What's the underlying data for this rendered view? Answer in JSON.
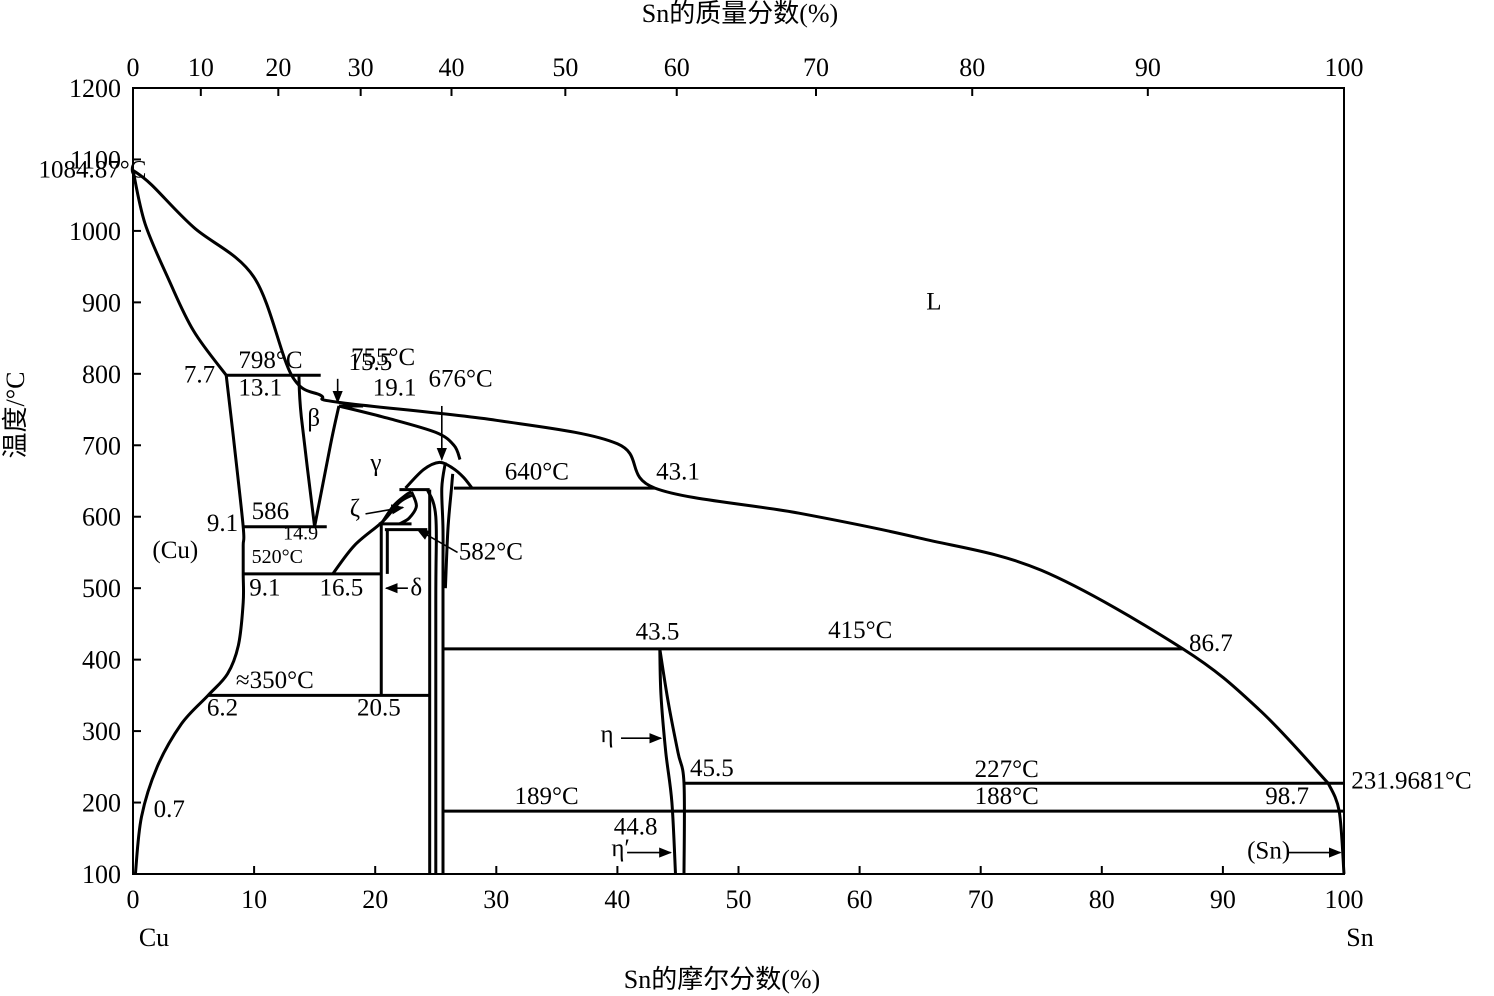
{
  "chart_data": {
    "type": "line",
    "title": "",
    "xlabel": "Sn的摩尔分数(%)",
    "x2label": "Sn的质量分数(%)",
    "ylabel": "温度/°C",
    "xlim": [
      0,
      100
    ],
    "ylim": [
      100,
      1200
    ],
    "grid": false,
    "x_ticks": [
      "0",
      "10",
      "20",
      "30",
      "40",
      "50",
      "60",
      "70",
      "80",
      "90",
      "100"
    ],
    "y_ticks": [
      "100",
      "200",
      "300",
      "400",
      "500",
      "600",
      "700",
      "800",
      "900",
      "1000",
      "1100",
      "1200"
    ],
    "x2_ticks": [
      "0",
      "10",
      "20",
      "30",
      "40",
      "50",
      "60",
      "70",
      "80",
      "90",
      "100"
    ],
    "x2_tick_positions_mol": [
      0,
      5.6,
      12.0,
      18.8,
      26.3,
      35.7,
      44.9,
      56.4,
      69.3,
      83.8,
      100
    ],
    "end_labels": {
      "left": "Cu",
      "right": "Sn"
    },
    "boundaries": [
      {
        "name": "liquidus-cu",
        "points": [
          [
            0,
            1084.87
          ],
          [
            1.5,
            1065
          ],
          [
            5,
            1005
          ],
          [
            10,
            935
          ],
          [
            13.1,
            798
          ],
          [
            15.5,
            770
          ],
          [
            17,
            760
          ],
          [
            30,
            735
          ],
          [
            40,
            702
          ],
          [
            43.1,
            640
          ],
          [
            55,
            605
          ],
          [
            65,
            570
          ],
          [
            75,
            525
          ],
          [
            86.7,
            415
          ],
          [
            93,
            330
          ],
          [
            98.7,
            227
          ]
        ]
      },
      {
        "name": "solidus-cu",
        "points": [
          [
            0,
            1084.87
          ],
          [
            1,
            1010
          ],
          [
            3,
            930
          ],
          [
            5,
            860
          ],
          [
            7.7,
            798
          ]
        ]
      },
      {
        "name": "cu-solvus",
        "points": [
          [
            7.7,
            798
          ],
          [
            8.3,
            710
          ],
          [
            9.1,
            586
          ],
          [
            9.1,
            560
          ],
          [
            9.1,
            520
          ],
          [
            9.1,
            480
          ],
          [
            8.7,
            420
          ],
          [
            7.8,
            380
          ],
          [
            6.2,
            350
          ],
          [
            4,
            310
          ],
          [
            2,
            250
          ],
          [
            0.7,
            180
          ],
          [
            0.2,
            100
          ]
        ]
      },
      {
        "name": "beta-left",
        "points": [
          [
            13.7,
            798
          ],
          [
            13.9,
            740
          ],
          [
            15,
            586
          ]
        ]
      },
      {
        "name": "beta-right",
        "points": [
          [
            15,
            586
          ],
          [
            16.3,
            700
          ],
          [
            17,
            755
          ]
        ]
      },
      {
        "name": "gamma-lower",
        "points": [
          [
            16.5,
            520
          ],
          [
            18.3,
            560
          ],
          [
            20.6,
            593
          ],
          [
            22,
            620
          ],
          [
            23,
            630
          ]
        ]
      },
      {
        "name": "gamma-upper",
        "points": [
          [
            17,
            755
          ],
          [
            21,
            738
          ],
          [
            25,
            718
          ],
          [
            26.5,
            700
          ],
          [
            27,
            680
          ]
        ]
      },
      {
        "name": "zeta-left",
        "points": [
          [
            20.5,
            590
          ],
          [
            21.5,
            615
          ],
          [
            22.5,
            630
          ],
          [
            23,
            635
          ]
        ]
      },
      {
        "name": "zeta-right",
        "points": [
          [
            23,
            635
          ],
          [
            23.4,
            615
          ],
          [
            22.8,
            598
          ],
          [
            22,
            590
          ]
        ]
      },
      {
        "name": "eps-dome",
        "points": [
          [
            22.5,
            640
          ],
          [
            24,
            666
          ],
          [
            25.3,
            676
          ],
          [
            26.4,
            668
          ],
          [
            27.3,
            655
          ],
          [
            28,
            640
          ]
        ]
      },
      {
        "name": "eps-left",
        "points": [
          [
            24.3,
            638
          ],
          [
            25,
            600
          ],
          [
            25,
            480
          ],
          [
            25,
            100
          ]
        ]
      },
      {
        "name": "eps-right",
        "points": [
          [
            25.8,
            676
          ],
          [
            25.5,
            640
          ],
          [
            25.6,
            582
          ],
          [
            25.6,
            500
          ],
          [
            25.6,
            100
          ]
        ]
      },
      {
        "name": "eps-right2",
        "points": [
          [
            26.4,
            660
          ],
          [
            26.3,
            640
          ],
          [
            26,
            582
          ],
          [
            25.8,
            500
          ]
        ]
      },
      {
        "name": "eta-left",
        "points": [
          [
            43.5,
            415
          ],
          [
            43.6,
            350
          ],
          [
            44,
            270
          ],
          [
            44.5,
            200
          ],
          [
            44.8,
            100
          ]
        ]
      },
      {
        "name": "eta-right",
        "points": [
          [
            43.5,
            415
          ],
          [
            44.2,
            340
          ],
          [
            45,
            270
          ],
          [
            45.5,
            227
          ],
          [
            45.5,
            100
          ]
        ]
      },
      {
        "name": "sn-solvus",
        "points": [
          [
            98.7,
            227
          ],
          [
            99.6,
            188
          ],
          [
            100,
            100
          ]
        ]
      }
    ],
    "isotherms": [
      {
        "name": "isotherm-798",
        "temp": 798,
        "x": [
          7.7,
          15.5
        ]
      },
      {
        "name": "isotherm-755",
        "temp": 755,
        "x": [
          17,
          19
        ]
      },
      {
        "name": "isotherm-640",
        "temp": 640,
        "x": [
          26.5,
          43.1
        ]
      },
      {
        "name": "isotherm-586",
        "temp": 586,
        "x": [
          9.1,
          16
        ]
      },
      {
        "name": "isotherm-520",
        "temp": 520,
        "x": [
          9.1,
          20.5
        ]
      },
      {
        "name": "isotherm-415",
        "temp": 415,
        "x": [
          25.6,
          86.7
        ]
      },
      {
        "name": "isotherm-350",
        "temp": 350,
        "x": [
          6.2,
          24.5
        ]
      },
      {
        "name": "isotherm-227",
        "temp": 227,
        "x": [
          45.5,
          100
        ]
      },
      {
        "name": "isotherm-188",
        "temp": 188,
        "x": [
          25.6,
          100
        ]
      },
      {
        "name": "isotherm-638",
        "temp": 638,
        "x": [
          22,
          24.5
        ]
      },
      {
        "name": "isotherm-590",
        "temp": 590,
        "x": [
          20.3,
          23
        ]
      },
      {
        "name": "isotherm-582",
        "temp": 582,
        "x": [
          20.8,
          24.3
        ]
      }
    ],
    "verticals": [
      {
        "name": "delta-left-boundary",
        "x": 20.5,
        "y": [
          350,
          590
        ]
      },
      {
        "name": "delta-right-boundary",
        "x": 24.5,
        "y": [
          100,
          638
        ]
      },
      {
        "name": "delta-inner-boundary",
        "x": 21,
        "y": [
          520,
          582
        ]
      }
    ],
    "annotations": [
      {
        "name": "label-melt-cu",
        "text": "1084.87°C",
        "x": -7.8,
        "y": 1075
      },
      {
        "name": "label-755",
        "text": "755°C",
        "x": 18,
        "y": 812
      },
      {
        "name": "label-798",
        "text": "798°C",
        "x": 8.7,
        "y": 808
      },
      {
        "name": "label-15-5",
        "text": "15.5",
        "x": 17.8,
        "y": 805
      },
      {
        "name": "label-7-7",
        "text": "7.7",
        "x": 4.2,
        "y": 788
      },
      {
        "name": "label-13-1",
        "text": "13.1",
        "x": 8.7,
        "y": 770
      },
      {
        "name": "label-19-1",
        "text": "19.1",
        "x": 19.8,
        "y": 770
      },
      {
        "name": "label-676",
        "text": "676°C",
        "x": 24.4,
        "y": 782
      },
      {
        "name": "label-beta",
        "text": "β",
        "x": 14.4,
        "y": 727
      },
      {
        "name": "label-gamma",
        "text": "γ",
        "x": 19.6,
        "y": 665
      },
      {
        "name": "label-640",
        "text": "640°C",
        "x": 30.7,
        "y": 652
      },
      {
        "name": "label-43-1",
        "text": "43.1",
        "x": 43.2,
        "y": 652
      },
      {
        "name": "label-zeta",
        "text": "ζ",
        "x": 17.9,
        "y": 600
      },
      {
        "name": "label-586",
        "text": "586",
        "x": 9.8,
        "y": 597
      },
      {
        "name": "label-9-1a",
        "text": "9.1",
        "x": 6.1,
        "y": 580
      },
      {
        "name": "label-14-9",
        "text": "14.9",
        "x": 12.4,
        "y": 568
      },
      {
        "name": "label-cu-phase",
        "text": "(Cu)",
        "x": 1.6,
        "y": 542
      },
      {
        "name": "label-520",
        "text": "520°C",
        "x": 9.8,
        "y": 535
      },
      {
        "name": "label-582",
        "text": "582°C",
        "x": 26.9,
        "y": 540
      },
      {
        "name": "label-9-1b",
        "text": "9.1",
        "x": 9.6,
        "y": 490
      },
      {
        "name": "label-16-5",
        "text": "16.5",
        "x": 15.4,
        "y": 490
      },
      {
        "name": "label-delta",
        "text": "δ",
        "x": 22.9,
        "y": 490
      },
      {
        "name": "label-43-5",
        "text": "43.5",
        "x": 41.5,
        "y": 428
      },
      {
        "name": "label-415",
        "text": "415°C",
        "x": 57.4,
        "y": 430
      },
      {
        "name": "label-86-7",
        "text": "86.7",
        "x": 87.2,
        "y": 412
      },
      {
        "name": "label-350",
        "text": "≈350°C",
        "x": 8.5,
        "y": 360
      },
      {
        "name": "label-6-2",
        "text": "6.2",
        "x": 6.1,
        "y": 322
      },
      {
        "name": "label-20-5",
        "text": "20.5",
        "x": 18.5,
        "y": 322
      },
      {
        "name": "label-eta",
        "text": "η",
        "x": 38.6,
        "y": 285
      },
      {
        "name": "label-45-5",
        "text": "45.5",
        "x": 46,
        "y": 237
      },
      {
        "name": "label-227",
        "text": "227°C",
        "x": 69.5,
        "y": 236
      },
      {
        "name": "label-melt-sn",
        "text": "231.9681°C",
        "x": 100.6,
        "y": 220
      },
      {
        "name": "label-189",
        "text": "189°C",
        "x": 31.5,
        "y": 198
      },
      {
        "name": "label-188",
        "text": "188°C",
        "x": 69.5,
        "y": 198
      },
      {
        "name": "label-98-7",
        "text": "98.7",
        "x": 93.5,
        "y": 198
      },
      {
        "name": "label-0-7",
        "text": "0.7",
        "x": 1.7,
        "y": 180
      },
      {
        "name": "label-44-8",
        "text": "44.8",
        "x": 39.7,
        "y": 155
      },
      {
        "name": "label-eta-prime",
        "text": "η′",
        "x": 39.5,
        "y": 125
      },
      {
        "name": "label-sn-phase",
        "text": "(Sn)",
        "x": 92,
        "y": 122
      },
      {
        "name": "label-liquid",
        "text": "L",
        "x": 65.5,
        "y": 890
      }
    ],
    "arrows": [
      {
        "name": "arrow-755",
        "from": [
          16.9,
          793
        ],
        "to": [
          16.9,
          760
        ]
      },
      {
        "name": "arrow-676",
        "from": [
          25.5,
          755
        ],
        "to": [
          25.5,
          680
        ]
      },
      {
        "name": "arrow-zeta",
        "from": [
          19.2,
          604
        ],
        "to": [
          22.3,
          613
        ]
      },
      {
        "name": "arrow-582",
        "from": [
          26.8,
          550
        ],
        "to": [
          23.5,
          582
        ]
      },
      {
        "name": "arrow-delta",
        "from": [
          22.7,
          500
        ],
        "to": [
          20.9,
          500
        ]
      },
      {
        "name": "arrow-eta",
        "from": [
          40.3,
          290
        ],
        "to": [
          43.6,
          290
        ]
      },
      {
        "name": "arrow-eta-prime",
        "from": [
          40.8,
          130
        ],
        "to": [
          44.4,
          130
        ]
      },
      {
        "name": "arrow-sn",
        "from": [
          95.3,
          130
        ],
        "to": [
          99.7,
          130
        ]
      }
    ]
  }
}
